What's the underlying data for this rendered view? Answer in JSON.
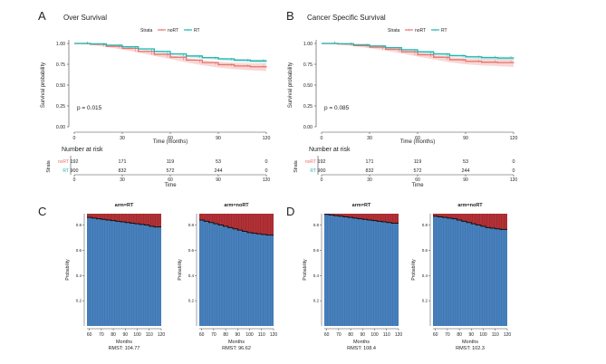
{
  "colors": {
    "norT": "#e8736c",
    "rt": "#22b5b0",
    "norT_band": "#f4b6b2",
    "rt_band": "#a5dedb",
    "rmst_below": "#3d78b6",
    "rmst_above": "#a8262b"
  },
  "chart_data": [
    {
      "panel": "A",
      "type": "line",
      "title": "Over Survival",
      "legend_title": "Strata",
      "legend_position": "top",
      "xlabel": "Time (months)",
      "ylabel": "Survival probability",
      "xlim": [
        0,
        120
      ],
      "ylim": [
        0,
        1
      ],
      "x_ticks": [
        0,
        30,
        60,
        90,
        120
      ],
      "y_ticks": [
        "0.00",
        "0.25",
        "0.50",
        "0.75",
        "1.00"
      ],
      "annotation": "p = 0.015",
      "series": [
        {
          "name": "noRT",
          "x": [
            0,
            10,
            20,
            30,
            40,
            50,
            60,
            70,
            80,
            90,
            100,
            110,
            120
          ],
          "y": [
            1.0,
            0.99,
            0.965,
            0.94,
            0.905,
            0.87,
            0.835,
            0.8,
            0.77,
            0.745,
            0.73,
            0.72,
            0.715
          ]
        },
        {
          "name": "RT",
          "x": [
            0,
            10,
            20,
            30,
            40,
            50,
            60,
            70,
            80,
            90,
            100,
            110,
            120
          ],
          "y": [
            1.0,
            0.995,
            0.98,
            0.96,
            0.935,
            0.905,
            0.875,
            0.85,
            0.83,
            0.815,
            0.8,
            0.79,
            0.785
          ]
        }
      ],
      "risk_table": {
        "title": "Number at risk",
        "ylabel": "Strata",
        "xlabel": "Time",
        "times": [
          "0",
          "30",
          "60",
          "90",
          "120"
        ],
        "rows": [
          {
            "label": "noRT",
            "counts": [
              "192",
              "171",
              "119",
              "53",
              "0"
            ]
          },
          {
            "label": "RT",
            "counts": [
              "900",
              "832",
              "572",
              "244",
              "0"
            ]
          }
        ]
      }
    },
    {
      "panel": "B",
      "type": "line",
      "title": "Cancer Specific Survival",
      "legend_title": "Strata",
      "legend_position": "top",
      "xlabel": "Time (months)",
      "ylabel": "Survival probability",
      "xlim": [
        0,
        120
      ],
      "ylim": [
        0,
        1
      ],
      "x_ticks": [
        0,
        30,
        60,
        90,
        120
      ],
      "y_ticks": [
        "0.00",
        "0.25",
        "0.50",
        "0.75",
        "1.00"
      ],
      "annotation": "p = 0.085",
      "series": [
        {
          "name": "noRT",
          "x": [
            0,
            10,
            20,
            30,
            40,
            50,
            60,
            70,
            80,
            90,
            100,
            110,
            120
          ],
          "y": [
            1.0,
            0.993,
            0.975,
            0.955,
            0.93,
            0.9,
            0.865,
            0.835,
            0.805,
            0.785,
            0.775,
            0.77,
            0.765
          ]
        },
        {
          "name": "RT",
          "x": [
            0,
            10,
            20,
            30,
            40,
            50,
            60,
            70,
            80,
            90,
            100,
            110,
            120
          ],
          "y": [
            1.0,
            0.997,
            0.985,
            0.97,
            0.95,
            0.925,
            0.9,
            0.875,
            0.855,
            0.84,
            0.83,
            0.825,
            0.82
          ]
        }
      ],
      "risk_table": {
        "title": "Number at risk",
        "ylabel": "Strata",
        "xlabel": "Time",
        "times": [
          "0",
          "30",
          "60",
          "90",
          "120"
        ],
        "rows": [
          {
            "label": "noRT",
            "counts": [
              "192",
              "171",
              "119",
              "53",
              "0"
            ]
          },
          {
            "label": "RT",
            "counts": [
              "900",
              "832",
              "572",
              "244",
              "0"
            ]
          }
        ]
      }
    },
    {
      "panel": "C",
      "type": "area",
      "plots": [
        {
          "title": "arm=RT",
          "xlabel": "Months",
          "ylabel": "Probability",
          "rmst": "RMST: 104.77",
          "x_ticks": [
            "60",
            "70",
            "80",
            "90",
            "100",
            "110",
            "120"
          ],
          "y_ticks": [
            "0.2",
            "0.4",
            "0.6",
            "0.8"
          ],
          "xlim": [
            58,
            120
          ],
          "ylim": [
            0,
            0.89
          ],
          "x": [
            58,
            62,
            66,
            70,
            74,
            78,
            82,
            86,
            90,
            94,
            98,
            102,
            106,
            110,
            114,
            120
          ],
          "y": [
            0.86,
            0.855,
            0.85,
            0.845,
            0.84,
            0.835,
            0.83,
            0.825,
            0.82,
            0.815,
            0.81,
            0.805,
            0.8,
            0.79,
            0.785,
            0.785
          ]
        },
        {
          "title": "arm=noRT",
          "xlabel": "Months",
          "ylabel": "Probability",
          "rmst": "RMST: 96.62",
          "x_ticks": [
            "60",
            "70",
            "80",
            "90",
            "100",
            "110",
            "120"
          ],
          "y_ticks": [
            "0.2",
            "0.4",
            "0.6",
            "0.8"
          ],
          "xlim": [
            58,
            120
          ],
          "ylim": [
            0,
            0.89
          ],
          "x": [
            58,
            62,
            66,
            70,
            74,
            78,
            82,
            86,
            90,
            94,
            98,
            102,
            106,
            110,
            114,
            120
          ],
          "y": [
            0.84,
            0.83,
            0.82,
            0.81,
            0.8,
            0.79,
            0.78,
            0.77,
            0.76,
            0.75,
            0.74,
            0.735,
            0.73,
            0.725,
            0.72,
            0.72
          ]
        }
      ]
    },
    {
      "panel": "D",
      "type": "area",
      "plots": [
        {
          "title": "arm=RT",
          "xlabel": "Months",
          "ylabel": "Probability",
          "rmst": "RMST: 108.4",
          "x_ticks": [
            "60",
            "70",
            "80",
            "90",
            "100",
            "110",
            "120"
          ],
          "y_ticks": [
            "0.2",
            "0.4",
            "0.6",
            "0.8"
          ],
          "xlim": [
            58,
            120
          ],
          "ylim": [
            0,
            0.89
          ],
          "x": [
            58,
            62,
            66,
            70,
            74,
            78,
            82,
            86,
            90,
            94,
            98,
            102,
            106,
            110,
            114,
            120
          ],
          "y": [
            0.885,
            0.88,
            0.875,
            0.87,
            0.865,
            0.86,
            0.855,
            0.85,
            0.845,
            0.84,
            0.835,
            0.83,
            0.825,
            0.82,
            0.815,
            0.815
          ]
        },
        {
          "title": "arm=noRT",
          "xlabel": "Months",
          "ylabel": "Probability",
          "rmst": "RMST: 102.3",
          "x_ticks": [
            "60",
            "70",
            "80",
            "90",
            "100",
            "110",
            "120"
          ],
          "y_ticks": [
            "0.2",
            "0.4",
            "0.6",
            "0.8"
          ],
          "xlim": [
            58,
            120
          ],
          "ylim": [
            0,
            0.89
          ],
          "x": [
            58,
            62,
            66,
            70,
            74,
            78,
            82,
            86,
            90,
            94,
            98,
            102,
            106,
            110,
            114,
            120
          ],
          "y": [
            0.87,
            0.865,
            0.86,
            0.855,
            0.85,
            0.84,
            0.83,
            0.82,
            0.81,
            0.8,
            0.79,
            0.78,
            0.775,
            0.77,
            0.765,
            0.765
          ]
        }
      ]
    }
  ]
}
